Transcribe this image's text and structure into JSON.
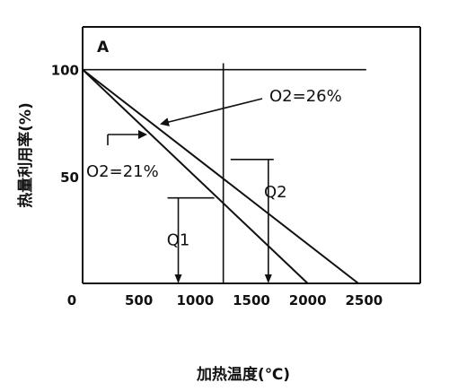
{
  "chart_data": {
    "type": "line",
    "panel_label": "A",
    "xlabel": "加热温度(℃)",
    "ylabel": "热量利用率(%)",
    "xlim": [
      0,
      3000
    ],
    "ylim": [
      0,
      120
    ],
    "x_ticks": [
      0,
      500,
      1000,
      1500,
      2000,
      2500
    ],
    "y_ticks": [
      0,
      50,
      100
    ],
    "series": [
      {
        "name": "O2=21%",
        "x": [
          0,
          2000
        ],
        "y": [
          100,
          0
        ]
      },
      {
        "name": "O2=26%",
        "x": [
          0,
          2450
        ],
        "y": [
          100,
          0
        ]
      }
    ],
    "reference_lines": {
      "y_100": 100,
      "x_1250": 1250
    },
    "annotations": {
      "q1": {
        "label": "Q1",
        "x": 850,
        "y_top": 40,
        "y_bottom": 0
      },
      "q2": {
        "label": "Q2",
        "x": 1650,
        "y_top": 58,
        "y_bottom": 0
      }
    },
    "grid": false
  }
}
